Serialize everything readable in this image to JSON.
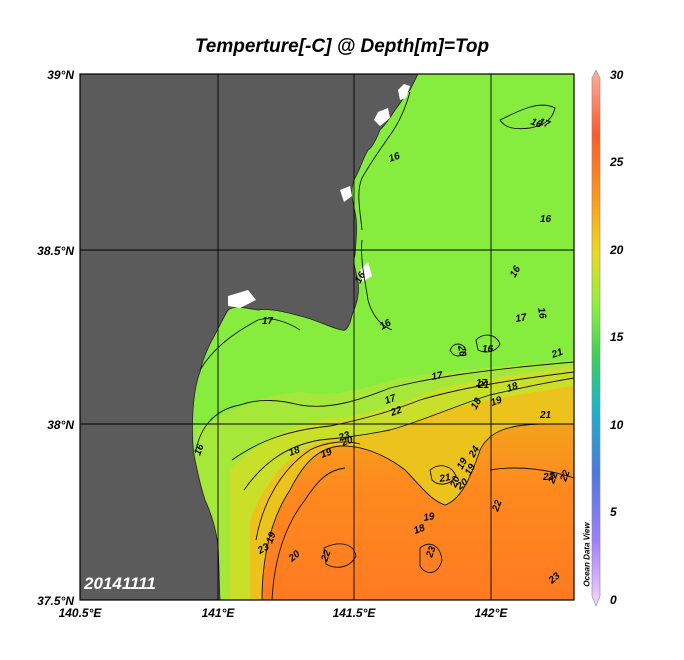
{
  "title": "Temperture[-C] @ Depth[m]=Top",
  "date": "20141111",
  "watermark": "Ocean Data View",
  "lat_labels": [
    "39°N",
    "38.5°N",
    "38°N",
    "37.5°N"
  ],
  "lon_labels": [
    "140.5°E",
    "141°E",
    "141.5°E",
    "142°E"
  ],
  "colorbar": {
    "min": 0,
    "max": 30,
    "ticks": [
      "30",
      "25",
      "20",
      "15",
      "10",
      "5",
      "0"
    ],
    "colors": [
      "#fbd6fb",
      "#9f7fff",
      "#4a78e0",
      "#19b6c9",
      "#3fcf55",
      "#8ef03e",
      "#eadc1c",
      "#ff9a1a",
      "#ff5a2a",
      "#ffb0a0"
    ]
  },
  "colors": {
    "land": "#5b5b5b",
    "water_cool": "#86ec3e",
    "water_mid": "#c8e028",
    "water_warm": "#ff8a1e"
  },
  "contour_labels": [
    {
      "text": "16",
      "name": "contour-label-16-a"
    },
    {
      "text": "17",
      "name": "contour-label-17-a"
    },
    {
      "text": "16",
      "name": "contour-label-16-b"
    },
    {
      "text": "16",
      "name": "contour-label-16-c"
    },
    {
      "text": "17",
      "name": "contour-label-17-b"
    },
    {
      "text": "16",
      "name": "contour-label-16-d"
    },
    {
      "text": "16",
      "name": "contour-label-16-e"
    },
    {
      "text": "16",
      "name": "contour-label-16-f"
    },
    {
      "text": "16",
      "name": "contour-label-16-g"
    },
    {
      "text": "16",
      "name": "contour-label-16-h"
    },
    {
      "text": "17",
      "name": "contour-label-17-c"
    },
    {
      "text": "17",
      "name": "contour-label-17-d"
    },
    {
      "text": "17",
      "name": "contour-label-17-e"
    },
    {
      "text": "18",
      "name": "contour-label-18-a"
    },
    {
      "text": "19",
      "name": "contour-label-19-a"
    },
    {
      "text": "20",
      "name": "contour-label-20-a"
    },
    {
      "text": "21",
      "name": "contour-label-21-a"
    },
    {
      "text": "22",
      "name": "contour-label-22-a"
    },
    {
      "text": "18",
      "name": "contour-label-18-b"
    },
    {
      "text": "17",
      "name": "contour-label-17-f"
    },
    {
      "text": "18",
      "name": "contour-label-18-c"
    },
    {
      "text": "19",
      "name": "contour-label-19-b"
    },
    {
      "text": "20",
      "name": "contour-label-20-b"
    },
    {
      "text": "21",
      "name": "contour-label-21-b"
    },
    {
      "text": "19",
      "name": "contour-label-19-c"
    },
    {
      "text": "20",
      "name": "contour-label-20-c"
    },
    {
      "text": "19",
      "name": "contour-label-19-d"
    },
    {
      "text": "18",
      "name": "contour-label-18-d"
    },
    {
      "text": "21",
      "name": "contour-label-21-c"
    },
    {
      "text": "22",
      "name": "contour-label-22-b"
    },
    {
      "text": "23",
      "name": "contour-label-23-a"
    },
    {
      "text": "23",
      "name": "contour-label-23-b"
    },
    {
      "text": "19",
      "name": "contour-label-19-e"
    },
    {
      "text": "20",
      "name": "contour-label-20-d"
    },
    {
      "text": "22",
      "name": "contour-label-22-c"
    },
    {
      "text": "23",
      "name": "contour-label-23-c"
    },
    {
      "text": "22",
      "name": "contour-label-22-d"
    },
    {
      "text": "22",
      "name": "contour-label-22-e"
    },
    {
      "text": "23",
      "name": "contour-label-23-d"
    },
    {
      "text": "23",
      "name": "contour-label-23-e"
    },
    {
      "text": "24",
      "name": "contour-label-24"
    },
    {
      "text": "19",
      "name": "contour-label-19-f"
    },
    {
      "text": "20",
      "name": "contour-label-20-e"
    },
    {
      "text": "21",
      "name": "contour-label-21-d"
    },
    {
      "text": "16",
      "name": "contour-label-16-i"
    },
    {
      "text": "15",
      "name": "contour-label-15"
    }
  ]
}
